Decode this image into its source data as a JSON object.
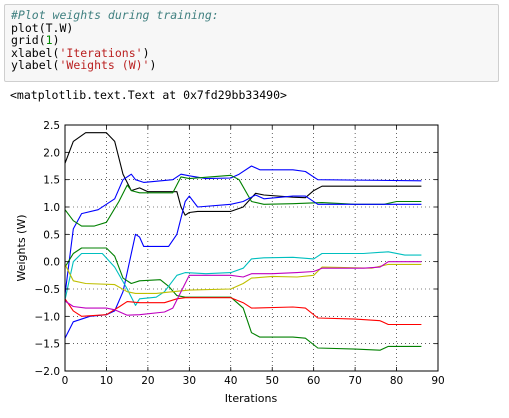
{
  "code_cell": {
    "lines": [
      {
        "parts": [
          {
            "t": "#Plot weights during training:",
            "c": "c-comment"
          }
        ]
      },
      {
        "parts": [
          {
            "t": "plot(T.W)",
            "c": ""
          }
        ]
      },
      {
        "parts": [
          {
            "t": "grid(",
            "c": ""
          },
          {
            "t": "1",
            "c": "c-num"
          },
          {
            "t": ")",
            "c": ""
          }
        ]
      },
      {
        "parts": [
          {
            "t": "xlabel(",
            "c": ""
          },
          {
            "t": "'Iterations'",
            "c": "c-str"
          },
          {
            "t": ")",
            "c": ""
          }
        ]
      },
      {
        "parts": [
          {
            "t": "ylabel(",
            "c": ""
          },
          {
            "t": "'Weights (W)'",
            "c": "c-str"
          },
          {
            "t": ")",
            "c": ""
          }
        ]
      }
    ]
  },
  "output": {
    "text": "<matplotlib.text.Text at 0x7fd29bb33490>"
  },
  "chart_data": {
    "type": "line",
    "title": "",
    "xlabel": "Iterations",
    "ylabel": "Weights (W)",
    "xlim": [
      0,
      90
    ],
    "ylim": [
      -2.0,
      2.5
    ],
    "xticks": [
      0,
      10,
      20,
      30,
      40,
      50,
      60,
      70,
      80,
      90
    ],
    "yticks": [
      -2.0,
      -1.5,
      -1.0,
      -0.5,
      0.0,
      0.5,
      1.0,
      1.5,
      2.0,
      2.5
    ],
    "grid": true,
    "legend": "none",
    "series": [
      {
        "color": "#000000",
        "points": [
          [
            0,
            1.8
          ],
          [
            2,
            2.2
          ],
          [
            5,
            2.36
          ],
          [
            10,
            2.36
          ],
          [
            12,
            2.2
          ],
          [
            14,
            1.6
          ],
          [
            16,
            1.3
          ],
          [
            18,
            1.35
          ],
          [
            20,
            1.28
          ],
          [
            27,
            1.28
          ],
          [
            28,
            1.0
          ],
          [
            29,
            0.85
          ],
          [
            30,
            0.9
          ],
          [
            32,
            0.92
          ],
          [
            40,
            0.92
          ],
          [
            43,
            1.0
          ],
          [
            46,
            1.25
          ],
          [
            48,
            1.22
          ],
          [
            55,
            1.18
          ],
          [
            58,
            1.17
          ],
          [
            60,
            1.3
          ],
          [
            62,
            1.38
          ],
          [
            86,
            1.38
          ]
        ]
      },
      {
        "color": "#0000ff",
        "points": [
          [
            0,
            -0.6
          ],
          [
            2,
            0.6
          ],
          [
            4,
            0.88
          ],
          [
            8,
            0.95
          ],
          [
            12,
            1.15
          ],
          [
            14,
            1.5
          ],
          [
            16,
            1.6
          ],
          [
            17,
            1.5
          ],
          [
            19,
            1.45
          ],
          [
            26,
            1.5
          ],
          [
            28,
            1.6
          ],
          [
            30,
            1.57
          ],
          [
            34,
            1.52
          ],
          [
            40,
            1.53
          ],
          [
            42,
            1.6
          ],
          [
            45,
            1.75
          ],
          [
            47,
            1.68
          ],
          [
            55,
            1.68
          ],
          [
            58,
            1.65
          ],
          [
            61,
            1.5
          ],
          [
            86,
            1.48
          ]
        ]
      },
      {
        "color": "#008000",
        "points": [
          [
            0,
            0.95
          ],
          [
            2,
            0.75
          ],
          [
            4,
            0.65
          ],
          [
            7,
            0.65
          ],
          [
            10,
            0.72
          ],
          [
            13,
            1.1
          ],
          [
            15,
            1.4
          ],
          [
            16,
            1.3
          ],
          [
            18,
            1.26
          ],
          [
            26,
            1.26
          ],
          [
            28,
            1.55
          ],
          [
            30,
            1.52
          ],
          [
            40,
            1.58
          ],
          [
            42,
            1.5
          ],
          [
            45,
            1.1
          ],
          [
            48,
            1.05
          ],
          [
            55,
            1.06
          ],
          [
            62,
            1.08
          ],
          [
            70,
            1.05
          ],
          [
            77,
            1.05
          ],
          [
            80,
            1.1
          ],
          [
            86,
            1.1
          ]
        ]
      },
      {
        "color": "#0000ff",
        "points": [
          [
            0,
            -1.4
          ],
          [
            2,
            -1.1
          ],
          [
            6,
            -1.0
          ],
          [
            10,
            -0.97
          ],
          [
            12,
            -0.9
          ],
          [
            14,
            -0.55
          ],
          [
            16,
            0.15
          ],
          [
            17,
            0.5
          ],
          [
            18,
            0.45
          ],
          [
            19,
            0.28
          ],
          [
            25,
            0.28
          ],
          [
            27,
            0.5
          ],
          [
            29,
            1.1
          ],
          [
            30,
            1.2
          ],
          [
            32,
            1.0
          ],
          [
            40,
            1.05
          ],
          [
            43,
            1.1
          ],
          [
            46,
            1.22
          ],
          [
            48,
            1.15
          ],
          [
            55,
            1.2
          ],
          [
            58,
            1.2
          ],
          [
            61,
            1.05
          ],
          [
            86,
            1.05
          ]
        ]
      },
      {
        "color": "#008000",
        "points": [
          [
            0,
            -0.1
          ],
          [
            2,
            0.15
          ],
          [
            4,
            0.25
          ],
          [
            10,
            0.25
          ],
          [
            12,
            0.1
          ],
          [
            14,
            -0.3
          ],
          [
            16,
            -0.4
          ],
          [
            18,
            -0.35
          ],
          [
            23,
            -0.33
          ],
          [
            25,
            -0.45
          ],
          [
            27,
            -0.62
          ],
          [
            29,
            -0.65
          ],
          [
            40,
            -0.65
          ],
          [
            43,
            -0.85
          ],
          [
            45,
            -1.3
          ],
          [
            47,
            -1.38
          ],
          [
            55,
            -1.38
          ],
          [
            58,
            -1.4
          ],
          [
            61,
            -1.58
          ],
          [
            70,
            -1.6
          ],
          [
            76,
            -1.62
          ],
          [
            78,
            -1.55
          ],
          [
            86,
            -1.55
          ]
        ]
      },
      {
        "color": "#00bfbf",
        "points": [
          [
            0,
            -0.7
          ],
          [
            2,
            0.0
          ],
          [
            4,
            0.15
          ],
          [
            9,
            0.15
          ],
          [
            12,
            -0.1
          ],
          [
            15,
            -0.5
          ],
          [
            17,
            -0.8
          ],
          [
            18,
            -0.68
          ],
          [
            22,
            -0.65
          ],
          [
            24,
            -0.55
          ],
          [
            27,
            -0.25
          ],
          [
            29,
            -0.2
          ],
          [
            34,
            -0.22
          ],
          [
            40,
            -0.2
          ],
          [
            43,
            -0.12
          ],
          [
            45,
            0.05
          ],
          [
            48,
            0.07
          ],
          [
            55,
            0.08
          ],
          [
            60,
            0.05
          ],
          [
            62,
            0.15
          ],
          [
            72,
            0.15
          ],
          [
            78,
            0.18
          ],
          [
            82,
            0.12
          ],
          [
            86,
            0.12
          ]
        ]
      },
      {
        "color": "#bfbf00",
        "points": [
          [
            0,
            -0.05
          ],
          [
            2,
            -0.35
          ],
          [
            5,
            -0.4
          ],
          [
            12,
            -0.42
          ],
          [
            15,
            -0.55
          ],
          [
            17,
            -0.58
          ],
          [
            22,
            -0.58
          ],
          [
            26,
            -0.55
          ],
          [
            30,
            -0.52
          ],
          [
            40,
            -0.5
          ],
          [
            43,
            -0.4
          ],
          [
            45,
            -0.3
          ],
          [
            50,
            -0.27
          ],
          [
            56,
            -0.28
          ],
          [
            60,
            -0.25
          ],
          [
            62,
            -0.1
          ],
          [
            74,
            -0.12
          ],
          [
            78,
            -0.05
          ],
          [
            86,
            -0.05
          ]
        ]
      },
      {
        "color": "#ff0000",
        "points": [
          [
            0,
            -0.68
          ],
          [
            2,
            -0.9
          ],
          [
            4,
            -1.0
          ],
          [
            10,
            -0.97
          ],
          [
            13,
            -0.83
          ],
          [
            15,
            -0.73
          ],
          [
            18,
            -0.75
          ],
          [
            24,
            -0.75
          ],
          [
            27,
            -0.68
          ],
          [
            29,
            -0.66
          ],
          [
            40,
            -0.66
          ],
          [
            43,
            -0.75
          ],
          [
            45,
            -0.85
          ],
          [
            55,
            -0.83
          ],
          [
            58,
            -0.85
          ],
          [
            61,
            -1.03
          ],
          [
            70,
            -1.05
          ],
          [
            76,
            -1.08
          ],
          [
            78,
            -1.15
          ],
          [
            86,
            -1.15
          ]
        ]
      },
      {
        "color": "#bf00bf",
        "points": [
          [
            0,
            -0.72
          ],
          [
            2,
            -0.82
          ],
          [
            5,
            -0.85
          ],
          [
            10,
            -0.85
          ],
          [
            12,
            -0.88
          ],
          [
            15,
            -0.98
          ],
          [
            18,
            -0.97
          ],
          [
            24,
            -0.92
          ],
          [
            26,
            -0.85
          ],
          [
            28,
            -0.55
          ],
          [
            30,
            -0.25
          ],
          [
            32,
            -0.25
          ],
          [
            40,
            -0.25
          ],
          [
            43,
            -0.28
          ],
          [
            45,
            -0.22
          ],
          [
            50,
            -0.22
          ],
          [
            56,
            -0.2
          ],
          [
            60,
            -0.18
          ],
          [
            62,
            -0.12
          ],
          [
            72,
            -0.12
          ],
          [
            76,
            -0.1
          ],
          [
            78,
            0.0
          ],
          [
            86,
            0.0
          ]
        ]
      }
    ]
  }
}
